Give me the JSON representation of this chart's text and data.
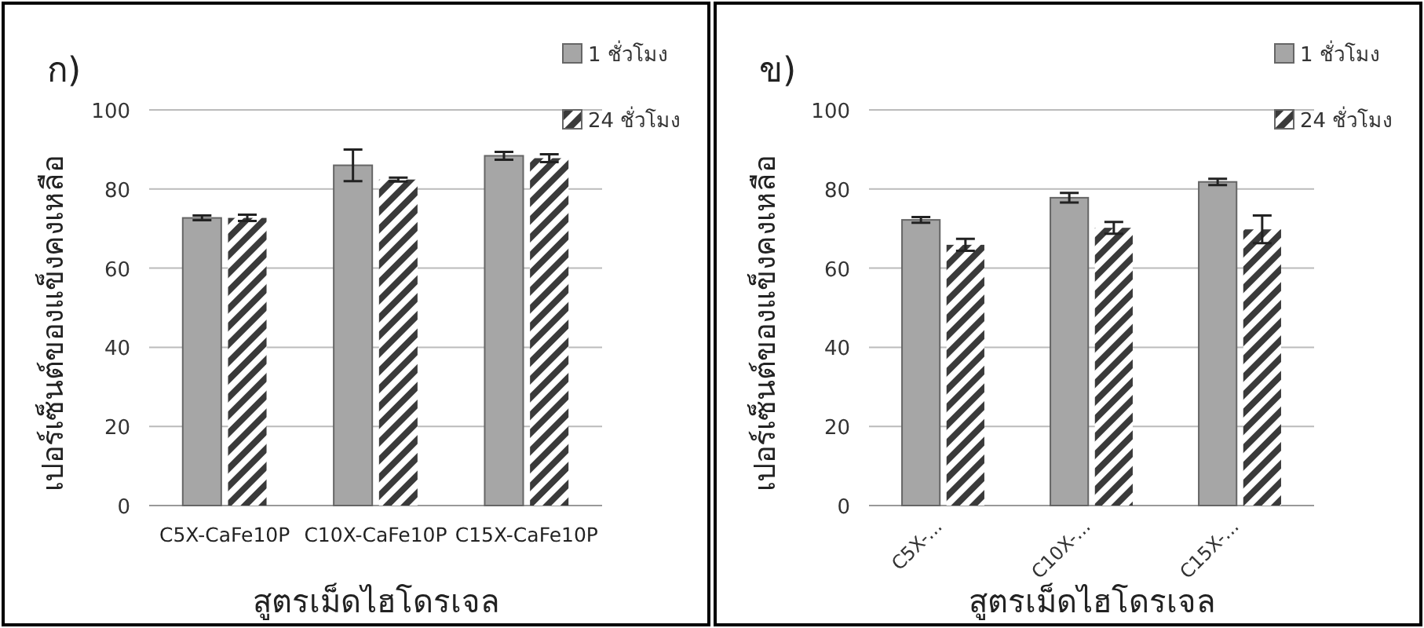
{
  "chart_data": [
    {
      "type": "bar",
      "title": "ก)",
      "ylabel": "เปอร์เซ็นต์ของแข็งคงเหลือ",
      "xlabel": "สูตรเม็ดไฮโดรเจล",
      "categories": [
        "C5X-CaFe10P",
        "C10X-CaFe10P",
        "C15X-CaFe10P"
      ],
      "ylim": [
        0,
        100
      ],
      "yticks": [
        0,
        20,
        40,
        60,
        80,
        100
      ],
      "grid": "y",
      "legend": "top right",
      "series": [
        {
          "name": "1 ชั่วโมง",
          "color": "#a6a6a6",
          "values": [
            72.7,
            86,
            88.4
          ],
          "errors": [
            0.6,
            4,
            1
          ]
        },
        {
          "name": "24 ชั่วโมง",
          "color": "#3a3a3a",
          "values": [
            72.7,
            82.4,
            87.8
          ],
          "errors": [
            0.8,
            0.5,
            1
          ]
        }
      ]
    },
    {
      "type": "bar",
      "title": "ข)",
      "ylabel": "เปอร์เซ็นต์ของแข็งคงเหลือ",
      "xlabel": "สูตรเม็ดไฮโดรเจล",
      "categories": [
        "C5X-...",
        "C10X-...",
        "C15X-..."
      ],
      "ylim": [
        0,
        100
      ],
      "yticks": [
        0,
        20,
        40,
        60,
        80,
        100
      ],
      "grid": "y",
      "legend": "top right",
      "series": [
        {
          "name": "1 ชั่วโมง",
          "color": "#a6a6a6",
          "values": [
            72.2,
            77.8,
            81.8
          ],
          "errors": [
            0.7,
            1.2,
            0.8
          ]
        },
        {
          "name": "24 ชั่วโมง",
          "color": "#3a3a3a",
          "values": [
            65.9,
            70.2,
            69.8
          ],
          "errors": [
            1.5,
            1.5,
            3.5
          ]
        }
      ]
    }
  ]
}
